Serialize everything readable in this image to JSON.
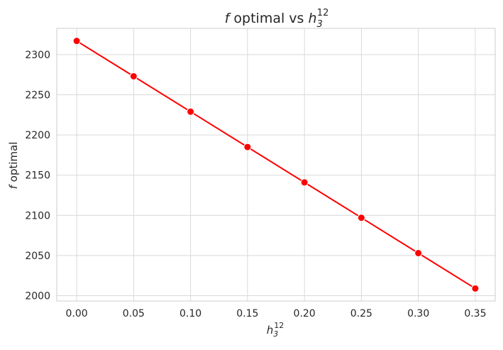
{
  "chart_data": {
    "type": "line",
    "title_main": "f",
    "title_rest": " optimal vs ",
    "title_sym_base": "h",
    "title_sym_sub": "3",
    "title_sym_sup": "12",
    "xlabel_base": "h",
    "xlabel_sub": "3",
    "xlabel_sup": "12",
    "ylabel_italic": "f",
    "ylabel_rest": " optimal",
    "x": [
      0.0,
      0.05,
      0.1,
      0.15,
      0.2,
      0.25,
      0.3,
      0.35
    ],
    "series": [
      {
        "values": [
          2317,
          2273,
          2229,
          2185,
          2141,
          2097,
          2053,
          2009
        ],
        "color": "#ff0000",
        "marker": "circle"
      }
    ],
    "xticks": [
      0.0,
      0.05,
      0.1,
      0.15,
      0.2,
      0.25,
      0.3,
      0.35
    ],
    "xtick_labels": [
      "0.00",
      "0.05",
      "0.10",
      "0.15",
      "0.20",
      "0.25",
      "0.30",
      "0.35"
    ],
    "yticks": [
      2000,
      2050,
      2100,
      2150,
      2200,
      2250,
      2300
    ],
    "ytick_labels": [
      "2000",
      "2050",
      "2100",
      "2150",
      "2200",
      "2250",
      "2300"
    ],
    "xlim": [
      -0.0175,
      0.3675
    ],
    "ylim": [
      1993.4,
      2332.6
    ],
    "grid": true,
    "grid_color": "#d9d9d9",
    "legend": "none"
  }
}
